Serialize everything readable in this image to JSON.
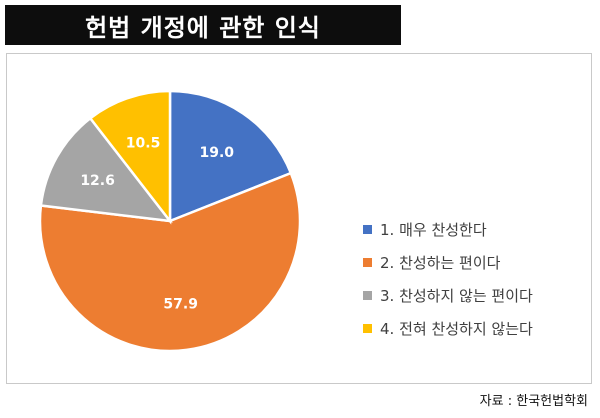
{
  "title": "헌법 개정에 관한 인식",
  "source": "자료 : 한국헌법학회",
  "chart_data": {
    "type": "pie",
    "labels": [
      "1. 매우 찬성한다",
      "2. 찬성하는 편이다",
      "3. 찬성하지 않는 편이다",
      "4. 전혀 찬성하지 않는다"
    ],
    "values": [
      19.0,
      57.9,
      12.6,
      10.5
    ],
    "value_labels": [
      "19.0",
      "57.9",
      "12.6",
      "10.5"
    ],
    "colors": [
      "#4472c4",
      "#ed7d31",
      "#a5a5a5",
      "#ffc000"
    ],
    "start_angle": "12 o'clock, clockwise",
    "legend_position": "right"
  }
}
